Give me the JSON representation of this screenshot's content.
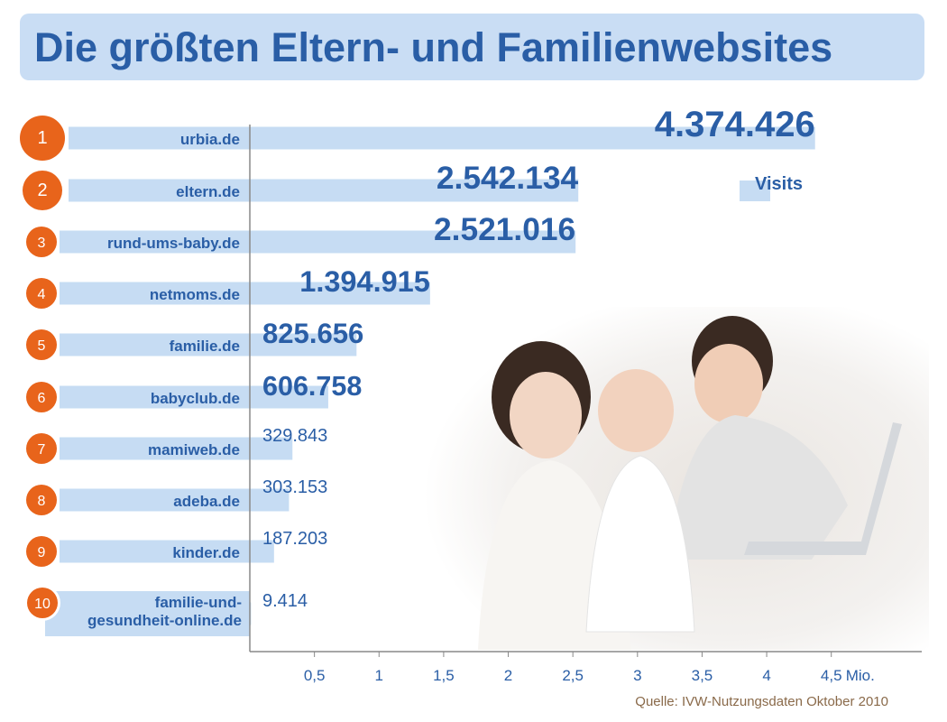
{
  "chart_data": {
    "type": "bar",
    "orientation": "horizontal",
    "title": "Die größten Eltern- und Familienwebsites",
    "ranks": [
      "1",
      "2",
      "3",
      "4",
      "5",
      "6",
      "7",
      "8",
      "9",
      "10"
    ],
    "categories": [
      "urbia.de",
      "eltern.de",
      "rund-ums-baby.de",
      "netmoms.de",
      "familie.de",
      "babyclub.de",
      "mamiweb.de",
      "adeba.de",
      "kinder.de",
      "familie-und-gesundheit-online.de"
    ],
    "series": [
      {
        "name": "Visits",
        "color": "#c6dcf3",
        "values": [
          4374426,
          2542134,
          2521016,
          1394915,
          825656,
          606758,
          329843,
          303153,
          187203,
          9414
        ],
        "value_labels": [
          "4.374.426",
          "2.542.134",
          "2.521.016",
          "1.394.915",
          "825.656",
          "606.758",
          "329.843",
          "303.153",
          "187.203",
          "9.414"
        ]
      }
    ],
    "xlim": [
      0,
      5200000
    ],
    "xticks": [
      {
        "value": 500000,
        "label": "0,5"
      },
      {
        "value": 1000000,
        "label": "1"
      },
      {
        "value": 1500000,
        "label": "1,5"
      },
      {
        "value": 2000000,
        "label": "2"
      },
      {
        "value": 2500000,
        "label": "2,5"
      },
      {
        "value": 3000000,
        "label": "3"
      },
      {
        "value": 3500000,
        "label": "3,5"
      },
      {
        "value": 4000000,
        "label": "4"
      },
      {
        "value": 4500000,
        "label": "4,5"
      }
    ],
    "x_unit": "Mio.",
    "source": "Quelle: IVW-Nutzungsdaten Oktober 2010"
  }
}
